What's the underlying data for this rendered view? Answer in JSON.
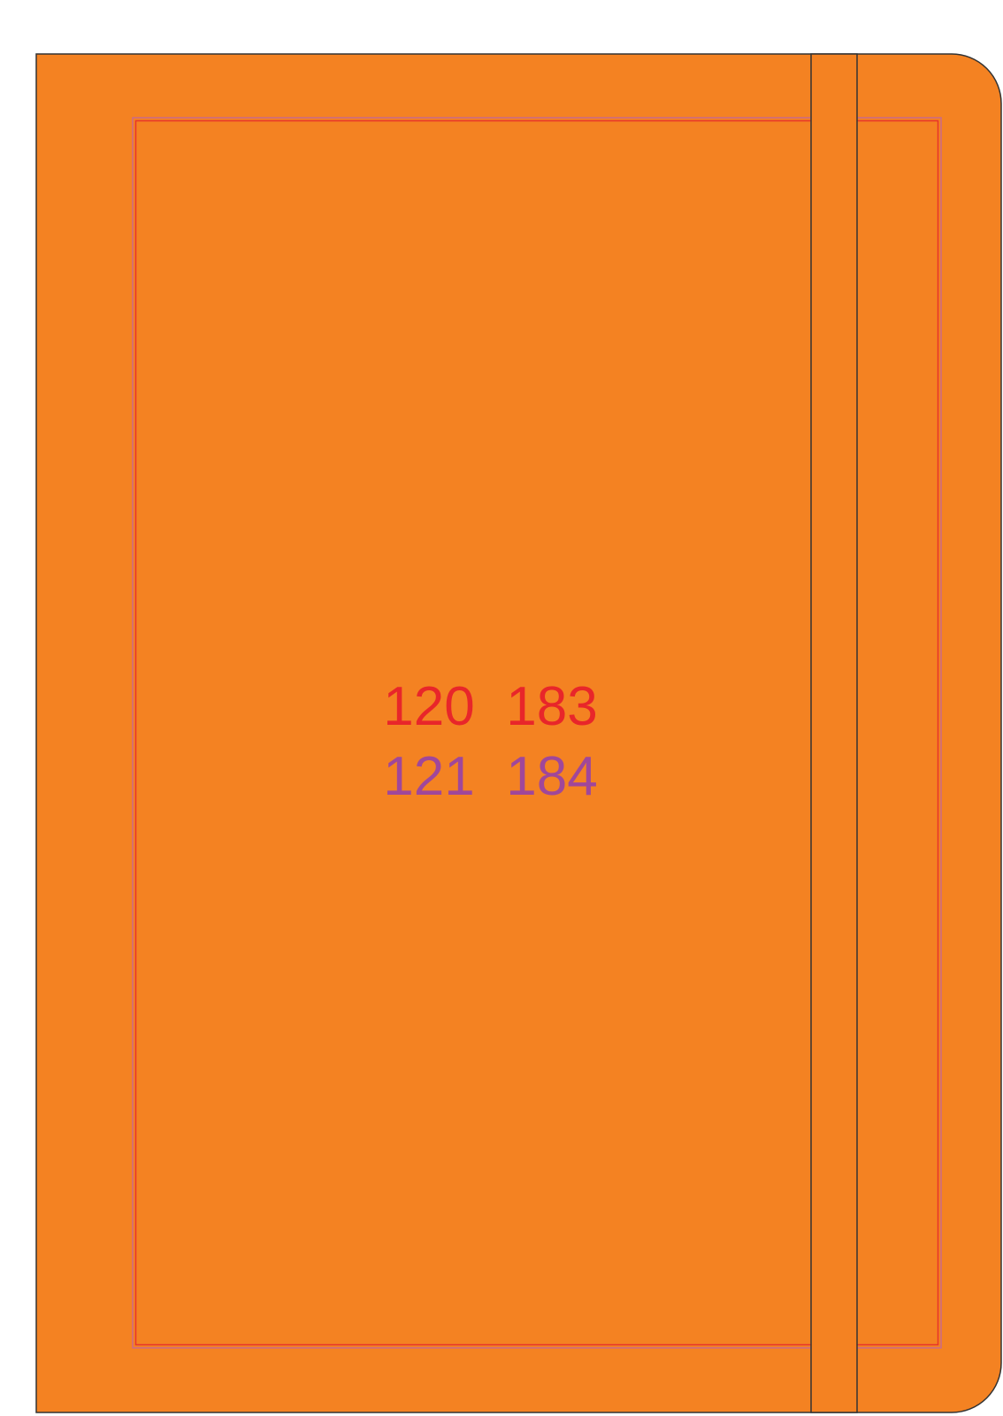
{
  "codes": [
    [
      "120",
      "183"
    ],
    [
      "121",
      "184"
    ]
  ]
}
